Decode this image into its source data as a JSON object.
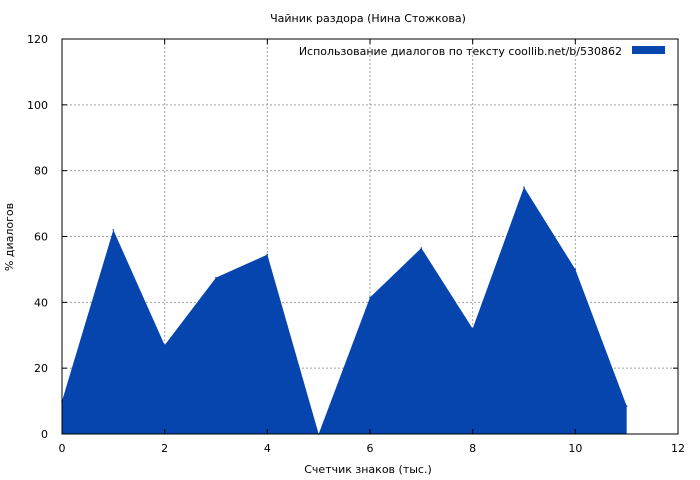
{
  "chart_data": {
    "type": "area",
    "title": "Чайник раздора (Нина Стожкова)",
    "xlabel": "Счетчик знаков (тыс.)",
    "ylabel": "% диалогов",
    "xlim": [
      0,
      12
    ],
    "ylim": [
      0,
      120
    ],
    "xticks": [
      0,
      2,
      4,
      6,
      8,
      10,
      12
    ],
    "yticks": [
      0,
      20,
      40,
      60,
      80,
      100,
      120
    ],
    "grid": true,
    "legend_position": "top-right",
    "series": [
      {
        "name": "Использование диалогов по тексту  coollib.net/b/530862",
        "color": "#0645ad",
        "x": [
          0,
          1,
          2,
          3,
          4,
          5,
          6,
          7,
          8,
          9,
          10,
          11
        ],
        "y": [
          10,
          62,
          27,
          47.5,
          54.5,
          0,
          41.5,
          56.5,
          32,
          75,
          50,
          8.5
        ]
      }
    ]
  }
}
